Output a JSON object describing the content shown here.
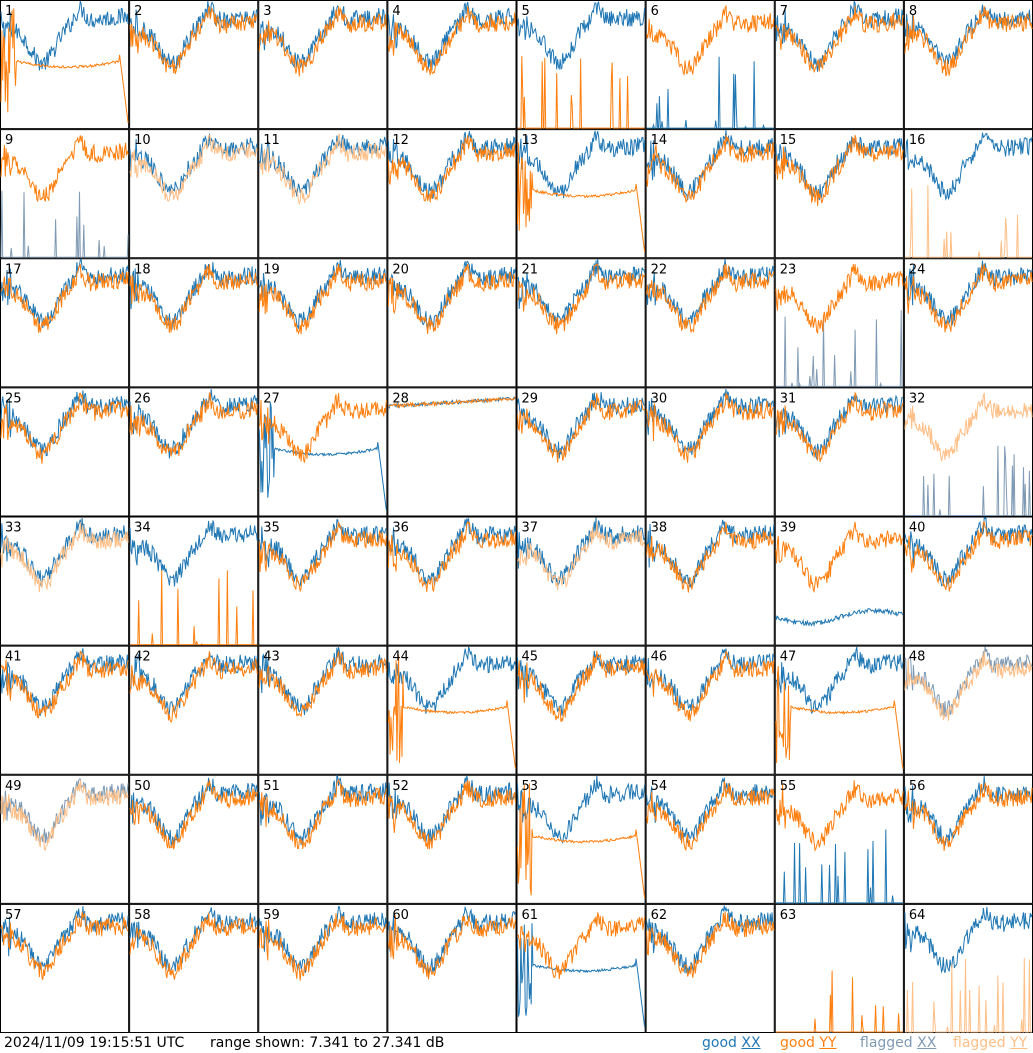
{
  "chart_data": {
    "type": "line",
    "panel_count": 64,
    "grid_rows": 8,
    "grid_cols": 8,
    "panel_labels": [
      "1",
      "2",
      "3",
      "4",
      "5",
      "6",
      "7",
      "8",
      "9",
      "10",
      "11",
      "12",
      "13",
      "14",
      "15",
      "16",
      "17",
      "18",
      "19",
      "20",
      "21",
      "22",
      "23",
      "24",
      "25",
      "26",
      "27",
      "28",
      "29",
      "30",
      "31",
      "32",
      "33",
      "34",
      "35",
      "36",
      "37",
      "38",
      "39",
      "40",
      "41",
      "42",
      "43",
      "44",
      "45",
      "46",
      "47",
      "48",
      "49",
      "50",
      "51",
      "52",
      "53",
      "54",
      "55",
      "56",
      "57",
      "58",
      "59",
      "60",
      "61",
      "62",
      "63",
      "64"
    ],
    "ylim_db": [
      7.341,
      27.341
    ],
    "series": [
      {
        "name": "good XX",
        "color": "#1f77b4"
      },
      {
        "name": "good YY",
        "color": "#ff7f0e"
      },
      {
        "name": "flagged XX",
        "color": "#7f9ab4"
      },
      {
        "name": "flagged YY",
        "color": "#ffbf87"
      }
    ],
    "panel_styles": {
      "1": {
        "x": "b",
        "y": "d"
      },
      "5": {
        "x": "b",
        "y": "s"
      },
      "6": {
        "x": "s",
        "y": "b"
      },
      "8": {
        "x": "b",
        "y": "b",
        "xf": false
      },
      "9": {
        "x": "s",
        "y": "b",
        "xf": true
      },
      "10": {
        "x": "b",
        "y": "b",
        "yf": true
      },
      "11": {
        "x": "b",
        "y": "b",
        "yf": true
      },
      "13": {
        "x": "b",
        "y": "d"
      },
      "16": {
        "x": "b",
        "y": "s",
        "yf": true
      },
      "23": {
        "x": "s",
        "y": "b",
        "xf": true
      },
      "27": {
        "x": "d",
        "y": "b"
      },
      "28": {
        "x": "f",
        "y": "f"
      },
      "32": {
        "x": "s",
        "y": "b",
        "xf": true,
        "yf": true
      },
      "33": {
        "x": "b",
        "y": "b",
        "yf": true
      },
      "34": {
        "x": "b",
        "y": "s"
      },
      "37": {
        "x": "b",
        "y": "b",
        "yf": true
      },
      "39": {
        "x": "l",
        "y": "b"
      },
      "44": {
        "x": "b",
        "y": "d"
      },
      "47": {
        "x": "b",
        "y": "d"
      },
      "48": {
        "x": "b",
        "y": "b",
        "xf": true,
        "yf": true
      },
      "49": {
        "x": "b",
        "y": "b",
        "xf": true,
        "yf": true
      },
      "53": {
        "x": "b",
        "y": "d"
      },
      "55": {
        "x": "s",
        "y": "b"
      },
      "61": {
        "x": "d",
        "y": "b"
      },
      "62": {
        "x": "b",
        "y": "b"
      },
      "63": {
        "x": "n",
        "y": "s"
      },
      "64": {
        "x": "b",
        "y": "s",
        "yf": true
      }
    }
  },
  "footer": {
    "timestamp": "2024/11/09 19:15:51 UTC",
    "range_text": "range shown: 7.341 to 27.341 dB",
    "legend": [
      {
        "prefix": "good ",
        "pol": "XX",
        "color": "#1f77b4"
      },
      {
        "prefix": "good ",
        "pol": "YY",
        "color": "#ff7f0e"
      },
      {
        "prefix": "flagged ",
        "pol": "XX",
        "color": "#7f9ab4"
      },
      {
        "prefix": "flagged ",
        "pol": "YY",
        "color": "#ffbf87"
      }
    ]
  }
}
